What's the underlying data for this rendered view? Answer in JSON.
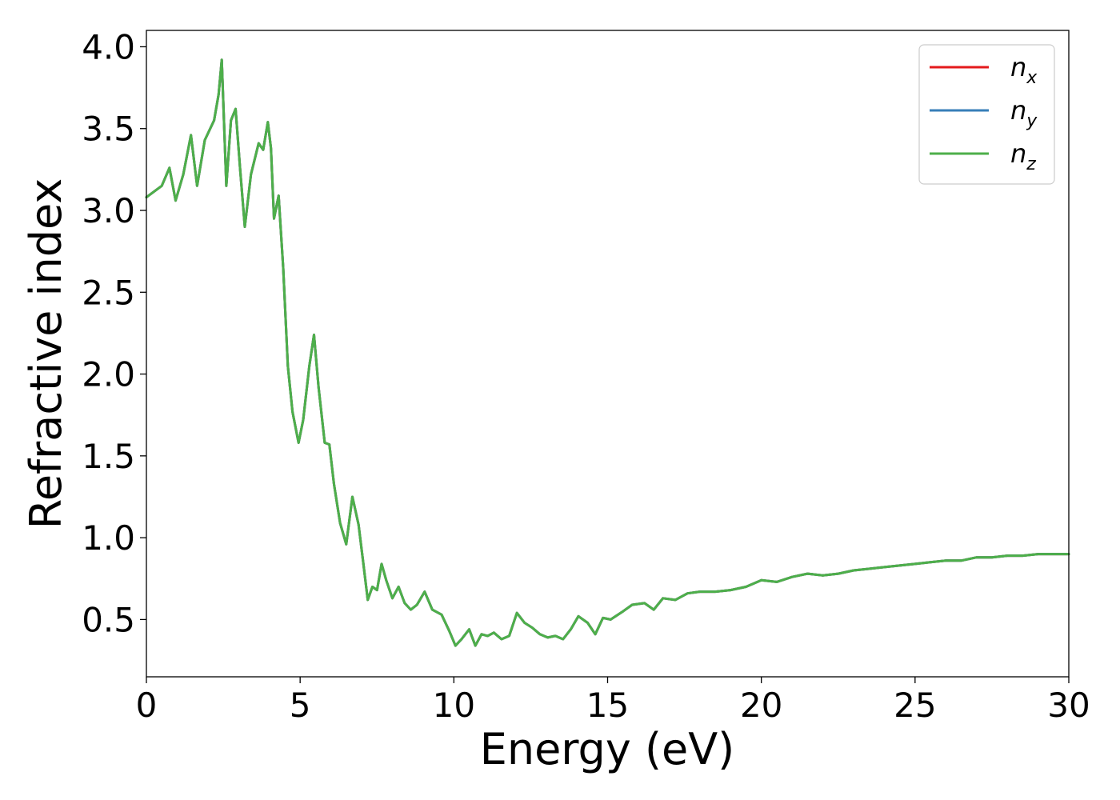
{
  "chart_data": {
    "type": "line",
    "title": "",
    "xlabel": "Energy (eV)",
    "ylabel": "Refractive index",
    "xlim": [
      0,
      30
    ],
    "ylim": [
      0.15,
      4.1
    ],
    "xticks": [
      0,
      5,
      10,
      15,
      20,
      25,
      30
    ],
    "xtick_labels": [
      "0",
      "5",
      "10",
      "15",
      "20",
      "25",
      "30"
    ],
    "yticks": [
      0.5,
      1.0,
      1.5,
      2.0,
      2.5,
      3.0,
      3.5,
      4.0
    ],
    "ytick_labels": [
      "0.5",
      "1.0",
      "1.5",
      "2.0",
      "2.5",
      "3.0",
      "3.5",
      "4.0"
    ],
    "grid": false,
    "legend_position": "top-right",
    "x": [
      0.0,
      0.5,
      0.75,
      0.95,
      1.2,
      1.45,
      1.65,
      1.9,
      2.2,
      2.35,
      2.45,
      2.6,
      2.75,
      2.9,
      3.05,
      3.2,
      3.4,
      3.65,
      3.8,
      3.95,
      4.05,
      4.15,
      4.3,
      4.45,
      4.6,
      4.75,
      4.95,
      5.1,
      5.3,
      5.45,
      5.6,
      5.8,
      5.95,
      6.1,
      6.3,
      6.5,
      6.7,
      6.9,
      7.05,
      7.2,
      7.35,
      7.5,
      7.65,
      7.8,
      8.0,
      8.2,
      8.4,
      8.6,
      8.8,
      9.05,
      9.3,
      9.6,
      9.85,
      10.05,
      10.25,
      10.5,
      10.7,
      10.9,
      11.1,
      11.3,
      11.55,
      11.8,
      12.05,
      12.3,
      12.55,
      12.8,
      13.05,
      13.3,
      13.55,
      13.8,
      14.05,
      14.35,
      14.6,
      14.85,
      15.1,
      15.5,
      15.8,
      16.2,
      16.5,
      16.8,
      17.2,
      17.6,
      18.0,
      18.5,
      19.0,
      19.5,
      20.0,
      20.5,
      21.0,
      21.5,
      22.0,
      22.5,
      23.0,
      23.5,
      24.0,
      24.5,
      25.0,
      25.5,
      26.0,
      26.5,
      27.0,
      27.5,
      28.0,
      28.5,
      29.0,
      29.5,
      30.0
    ],
    "series": [
      {
        "name": "n_x",
        "color": "#e41a1c",
        "values": [
          3.08,
          3.15,
          3.26,
          3.06,
          3.22,
          3.46,
          3.15,
          3.43,
          3.55,
          3.71,
          3.92,
          3.15,
          3.55,
          3.62,
          3.25,
          2.9,
          3.22,
          3.41,
          3.37,
          3.54,
          3.38,
          2.95,
          3.09,
          2.65,
          2.05,
          1.77,
          1.58,
          1.72,
          2.05,
          2.24,
          1.92,
          1.58,
          1.57,
          1.33,
          1.09,
          0.96,
          1.25,
          1.08,
          0.85,
          0.62,
          0.7,
          0.68,
          0.84,
          0.74,
          0.63,
          0.7,
          0.6,
          0.56,
          0.59,
          0.67,
          0.56,
          0.53,
          0.43,
          0.34,
          0.38,
          0.44,
          0.34,
          0.41,
          0.4,
          0.42,
          0.38,
          0.4,
          0.54,
          0.48,
          0.45,
          0.41,
          0.39,
          0.4,
          0.38,
          0.44,
          0.52,
          0.48,
          0.41,
          0.51,
          0.5,
          0.55,
          0.59,
          0.6,
          0.56,
          0.63,
          0.62,
          0.66,
          0.67,
          0.67,
          0.68,
          0.7,
          0.74,
          0.73,
          0.76,
          0.78,
          0.77,
          0.78,
          0.8,
          0.81,
          0.82,
          0.83,
          0.84,
          0.85,
          0.86,
          0.86,
          0.88,
          0.88,
          0.89,
          0.89,
          0.9,
          0.9,
          0.9
        ]
      },
      {
        "name": "n_y",
        "color": "#377eb8",
        "values": [
          3.08,
          3.15,
          3.26,
          3.06,
          3.22,
          3.46,
          3.15,
          3.43,
          3.55,
          3.71,
          3.92,
          3.15,
          3.55,
          3.62,
          3.25,
          2.9,
          3.22,
          3.41,
          3.37,
          3.54,
          3.38,
          2.95,
          3.09,
          2.65,
          2.05,
          1.77,
          1.58,
          1.72,
          2.05,
          2.24,
          1.92,
          1.58,
          1.57,
          1.33,
          1.09,
          0.96,
          1.25,
          1.08,
          0.85,
          0.62,
          0.7,
          0.68,
          0.84,
          0.74,
          0.63,
          0.7,
          0.6,
          0.56,
          0.59,
          0.67,
          0.56,
          0.53,
          0.43,
          0.34,
          0.38,
          0.44,
          0.34,
          0.41,
          0.4,
          0.42,
          0.38,
          0.4,
          0.54,
          0.48,
          0.45,
          0.41,
          0.39,
          0.4,
          0.38,
          0.44,
          0.52,
          0.48,
          0.41,
          0.51,
          0.5,
          0.55,
          0.59,
          0.6,
          0.56,
          0.63,
          0.62,
          0.66,
          0.67,
          0.67,
          0.68,
          0.7,
          0.74,
          0.73,
          0.76,
          0.78,
          0.77,
          0.78,
          0.8,
          0.81,
          0.82,
          0.83,
          0.84,
          0.85,
          0.86,
          0.86,
          0.88,
          0.88,
          0.89,
          0.89,
          0.9,
          0.9,
          0.9
        ]
      },
      {
        "name": "n_z",
        "color": "#4daf4a",
        "values": [
          3.08,
          3.15,
          3.26,
          3.06,
          3.22,
          3.46,
          3.15,
          3.43,
          3.55,
          3.71,
          3.92,
          3.15,
          3.55,
          3.62,
          3.25,
          2.9,
          3.22,
          3.41,
          3.37,
          3.54,
          3.38,
          2.95,
          3.09,
          2.65,
          2.05,
          1.77,
          1.58,
          1.72,
          2.05,
          2.24,
          1.92,
          1.58,
          1.57,
          1.33,
          1.09,
          0.96,
          1.25,
          1.08,
          0.85,
          0.62,
          0.7,
          0.68,
          0.84,
          0.74,
          0.63,
          0.7,
          0.6,
          0.56,
          0.59,
          0.67,
          0.56,
          0.53,
          0.43,
          0.34,
          0.38,
          0.44,
          0.34,
          0.41,
          0.4,
          0.42,
          0.38,
          0.4,
          0.54,
          0.48,
          0.45,
          0.41,
          0.39,
          0.4,
          0.38,
          0.44,
          0.52,
          0.48,
          0.41,
          0.51,
          0.5,
          0.55,
          0.59,
          0.6,
          0.56,
          0.63,
          0.62,
          0.66,
          0.67,
          0.67,
          0.68,
          0.7,
          0.74,
          0.73,
          0.76,
          0.78,
          0.77,
          0.78,
          0.8,
          0.81,
          0.82,
          0.83,
          0.84,
          0.85,
          0.86,
          0.86,
          0.88,
          0.88,
          0.89,
          0.89,
          0.9,
          0.9,
          0.9
        ]
      }
    ],
    "legend": [
      {
        "base": "n",
        "sub": "x"
      },
      {
        "base": "n",
        "sub": "y"
      },
      {
        "base": "n",
        "sub": "z"
      }
    ]
  }
}
